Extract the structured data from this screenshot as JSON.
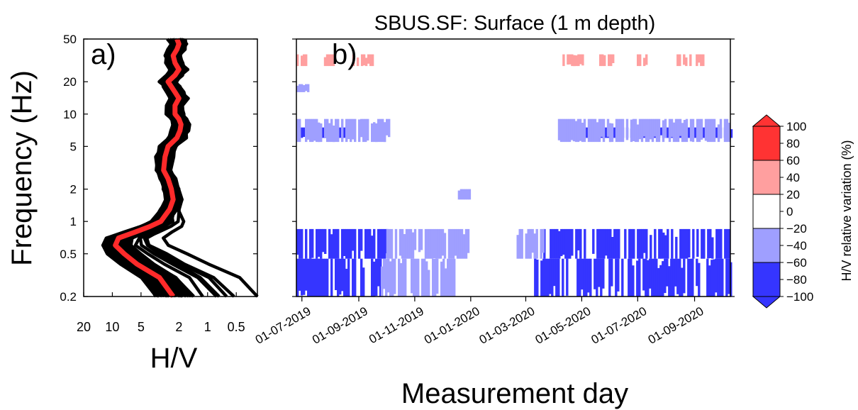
{
  "chart_data": [
    {
      "panel": "a)",
      "type": "line",
      "xlabel": "H/V",
      "ylabel": "Frequency (Hz)",
      "xscale": "log",
      "xreversed": true,
      "xlim": [
        20,
        0.3
      ],
      "yscale": "log",
      "ylim": [
        0.2,
        50
      ],
      "xticks": [
        "20",
        "10",
        "5",
        "2",
        "1",
        "0.5"
      ],
      "yticks": [
        "0.2",
        "0.5",
        "1",
        "2",
        "5",
        "10",
        "20",
        "50"
      ],
      "grid": false,
      "series": [
        {
          "role": "median",
          "color": "#ff2a2a",
          "points": [
            [
              2.3,
              0.2
            ],
            [
              3.2,
              0.3
            ],
            [
              5.5,
              0.4
            ],
            [
              7.5,
              0.5
            ],
            [
              9.3,
              0.6
            ],
            [
              8.6,
              0.7
            ],
            [
              5.7,
              0.8
            ],
            [
              4.0,
              0.9
            ],
            [
              3.1,
              1.0
            ],
            [
              2.5,
              1.3
            ],
            [
              2.3,
              1.6
            ],
            [
              2.4,
              2.0
            ],
            [
              2.6,
              2.5
            ],
            [
              2.9,
              3.0
            ],
            [
              2.8,
              4.0
            ],
            [
              2.6,
              5.0
            ],
            [
              2.1,
              6.0
            ],
            [
              1.95,
              7.0
            ],
            [
              1.9,
              8.0
            ],
            [
              2.0,
              9.0
            ],
            [
              2.2,
              10.0
            ],
            [
              2.2,
              12.0
            ],
            [
              2.0,
              14.0
            ],
            [
              2.2,
              16.0
            ],
            [
              2.4,
              18.0
            ],
            [
              2.6,
              20.0
            ],
            [
              2.2,
              23.0
            ],
            [
              2.0,
              26.0
            ],
            [
              2.2,
              30.0
            ],
            [
              2.3,
              35.0
            ],
            [
              2.1,
              40.0
            ],
            [
              2.0,
              45.0
            ],
            [
              2.1,
              50.0
            ]
          ]
        }
      ],
      "curve_color": "#000000"
    },
    {
      "panel": "b)",
      "type": "heatmap",
      "title": "SBUS.SF: Surface (1 m depth)",
      "xlabel": "Measurement day",
      "ylabel": "",
      "xticks": [
        "01-07-2019",
        "01-09-2019",
        "01-11-2019",
        "01-01-2020",
        "01-03-2020",
        "01-05-2020",
        "01-07-2020",
        "01-09-2020"
      ],
      "xlim": [
        "2019-06-25",
        "2020-10-10"
      ],
      "yscale": "log",
      "ylim": [
        0.2,
        50
      ],
      "colorbar": {
        "label": "H/V relative variation (%)",
        "ticks": [
          "100",
          "80",
          "60",
          "40",
          "20",
          "0",
          "−20",
          "−40",
          "−60",
          "−80",
          "−100"
        ],
        "range": [
          -100,
          100
        ],
        "bins": [
          {
            "from": 60,
            "to": 100,
            "color": "#ff3333"
          },
          {
            "from": 20,
            "to": 60,
            "color": "#ff9f9f"
          },
          {
            "from": -20,
            "to": 20,
            "color": "#ffffff"
          },
          {
            "from": -60,
            "to": -20,
            "color": "#9f9fff"
          },
          {
            "from": -100,
            "to": -60,
            "color": "#3535ff"
          }
        ]
      },
      "bands": [
        {
          "f_low": 0.45,
          "f_high": 0.85,
          "value": -70,
          "periods": [
            [
              "2019-06-25",
              "2019-10-01"
            ],
            [
              "2020-03-20",
              "2020-10-10"
            ]
          ]
        },
        {
          "f_low": 0.45,
          "f_high": 0.85,
          "value": -45,
          "periods": [
            [
              "2019-10-01",
              "2019-12-30"
            ],
            [
              "2020-02-20",
              "2020-03-20"
            ]
          ]
        },
        {
          "f_low": 0.2,
          "f_high": 0.45,
          "value": -65,
          "periods": [
            [
              "2019-06-25",
              "2019-09-25"
            ],
            [
              "2020-03-10",
              "2020-10-10"
            ]
          ]
        },
        {
          "f_low": 0.2,
          "f_high": 0.45,
          "value": -40,
          "periods": [
            [
              "2019-09-25",
              "2019-12-15"
            ]
          ]
        },
        {
          "f_low": 6.0,
          "f_high": 7.5,
          "value": -65,
          "periods": [
            [
              "2019-06-25",
              "2019-08-20"
            ],
            [
              "2020-04-05",
              "2020-10-10"
            ]
          ]
        },
        {
          "f_low": 5.5,
          "f_high": 9.0,
          "value": -35,
          "periods": [
            [
              "2019-06-25",
              "2019-10-05"
            ],
            [
              "2020-04-05",
              "2020-10-10"
            ]
          ]
        },
        {
          "f_low": 28,
          "f_high": 36,
          "value": 40,
          "periods": [
            [
              "2019-06-25",
              "2019-07-05"
            ],
            [
              "2019-07-25",
              "2019-08-05"
            ],
            [
              "2019-08-25",
              "2019-09-20"
            ],
            [
              "2020-04-10",
              "2020-05-01"
            ],
            [
              "2020-05-20",
              "2020-06-05"
            ],
            [
              "2020-06-30",
              "2020-07-10"
            ],
            [
              "2020-08-10",
              "2020-09-15"
            ]
          ]
        },
        {
          "f_low": 16,
          "f_high": 19,
          "value": -30,
          "periods": [
            [
              "2019-06-25",
              "2019-07-08"
            ]
          ]
        },
        {
          "f_low": 1.6,
          "f_high": 2.0,
          "value": -40,
          "periods": [
            [
              "2019-12-18",
              "2019-12-30"
            ]
          ]
        }
      ]
    }
  ]
}
